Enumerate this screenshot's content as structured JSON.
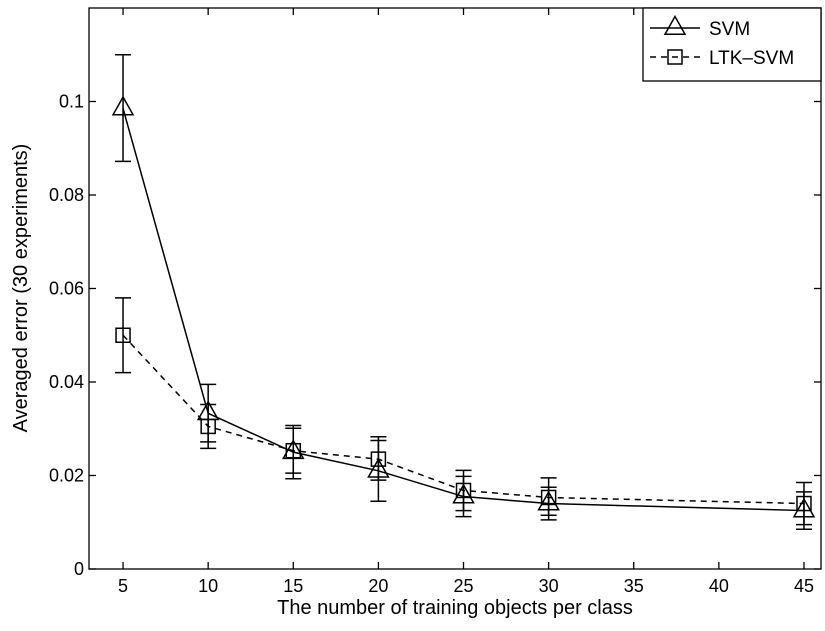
{
  "chart_data": {
    "type": "line",
    "title": "",
    "xlabel": "The number of training objects per class",
    "ylabel": "Averaged error (30 experiments)",
    "x_ticks": [
      "5",
      "10",
      "15",
      "20",
      "25",
      "30",
      "35",
      "40",
      "45"
    ],
    "y_ticks": [
      "0",
      "0.02",
      "0.04",
      "0.06",
      "0.08",
      "0.1"
    ],
    "xlim": [
      3,
      46
    ],
    "ylim": [
      0,
      0.12
    ],
    "grid": false,
    "legend_position": "top-right",
    "x": [
      5,
      10,
      15,
      20,
      25,
      30,
      45
    ],
    "series": [
      {
        "name": "SVM",
        "marker": "triangle",
        "linestyle": "solid",
        "values": [
          0.0985,
          0.0333,
          0.025,
          0.021,
          0.0155,
          0.014,
          0.0125
        ],
        "err_low": [
          0.0872,
          0.0272,
          0.0193,
          0.0145,
          0.0112,
          0.0105,
          0.0085
        ],
        "err_high": [
          0.11,
          0.0395,
          0.0307,
          0.0275,
          0.0198,
          0.0175,
          0.0165
        ]
      },
      {
        "name": "LTK–SVM",
        "marker": "square",
        "linestyle": "dashed",
        "values": [
          0.05,
          0.0305,
          0.0253,
          0.0235,
          0.0168,
          0.0153,
          0.014
        ],
        "err_low": [
          0.042,
          0.0258,
          0.0205,
          0.019,
          0.0125,
          0.0115,
          0.0095
        ],
        "err_high": [
          0.058,
          0.0352,
          0.0301,
          0.0283,
          0.0211,
          0.0195,
          0.0185
        ]
      }
    ]
  }
}
